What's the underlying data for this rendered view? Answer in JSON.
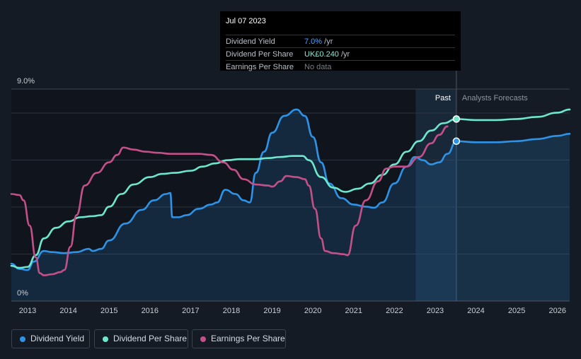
{
  "tooltip": {
    "date": "Jul 07 2023",
    "rows": [
      {
        "label": "Dividend Yield",
        "value": "7.0%",
        "unit": " /yr",
        "color": "#4aa3ff"
      },
      {
        "label": "Dividend Per Share",
        "value": "UK£0.240",
        "unit": " /yr",
        "color": "#7ff0da"
      },
      {
        "label": "Earnings Per Share",
        "value": "No data",
        "unit": "",
        "color": "#7a7f87"
      }
    ]
  },
  "legend": [
    {
      "label": "Dividend Yield",
      "color": "#2e93e6"
    },
    {
      "label": "Dividend Per Share",
      "color": "#6de8cf"
    },
    {
      "label": "Earnings Per Share",
      "color": "#c4508a"
    }
  ],
  "chart_data": {
    "type": "line",
    "title": "",
    "xlabel": "",
    "ylabel": "",
    "y_tick_labels": [
      "9.0%",
      "0%"
    ],
    "ylim": [
      0,
      9
    ],
    "xlim": [
      2012.6,
      2026.3
    ],
    "x_ticks": [
      2013,
      2014,
      2015,
      2016,
      2017,
      2018,
      2019,
      2020,
      2021,
      2022,
      2023,
      2024,
      2025,
      2026
    ],
    "past_label": "Past",
    "forecast_label": "Analysts Forecasts",
    "forecast_start": 2023.52,
    "highlight_start": 2022.52,
    "series": [
      {
        "name": "Dividend Yield",
        "color": "#2e93e6",
        "area": true,
        "points": [
          [
            2012.6,
            1.2
          ],
          [
            2012.8,
            0.95
          ],
          [
            2013.0,
            0.9
          ],
          [
            2013.15,
            1.3
          ],
          [
            2013.4,
            1.8
          ],
          [
            2013.6,
            1.75
          ],
          [
            2013.9,
            1.7
          ],
          [
            2014.2,
            1.75
          ],
          [
            2014.5,
            1.9
          ],
          [
            2014.6,
            1.8
          ],
          [
            2014.8,
            1.9
          ],
          [
            2015.0,
            2.3
          ],
          [
            2015.4,
            3.1
          ],
          [
            2015.8,
            3.75
          ],
          [
            2016.1,
            4.2
          ],
          [
            2016.4,
            4.5
          ],
          [
            2016.5,
            4.55
          ],
          [
            2016.55,
            3.4
          ],
          [
            2016.7,
            3.4
          ],
          [
            2016.9,
            3.5
          ],
          [
            2017.2,
            3.8
          ],
          [
            2017.5,
            4.0
          ],
          [
            2017.65,
            4.1
          ],
          [
            2017.85,
            4.7
          ],
          [
            2018.1,
            4.5
          ],
          [
            2018.3,
            4.2
          ],
          [
            2018.45,
            4.1
          ],
          [
            2018.6,
            5.5
          ],
          [
            2018.8,
            6.5
          ],
          [
            2019.0,
            7.4
          ],
          [
            2019.3,
            8.2
          ],
          [
            2019.6,
            8.5
          ],
          [
            2019.8,
            8.2
          ],
          [
            2020.0,
            7.2
          ],
          [
            2020.2,
            6.0
          ],
          [
            2020.4,
            5.0
          ],
          [
            2020.7,
            4.3
          ],
          [
            2021.0,
            4.0
          ],
          [
            2021.3,
            3.9
          ],
          [
            2021.5,
            3.85
          ],
          [
            2021.7,
            4.1
          ],
          [
            2022.0,
            5.0
          ],
          [
            2022.3,
            5.8
          ],
          [
            2022.5,
            6.25
          ],
          [
            2022.7,
            6.1
          ],
          [
            2022.9,
            5.9
          ],
          [
            2023.1,
            6.0
          ],
          [
            2023.3,
            6.4
          ],
          [
            2023.52,
            7.0
          ]
        ]
      },
      {
        "name": "Dividend Yield Forecast",
        "color": "#2e93e6",
        "area": true,
        "forecast": true,
        "points": [
          [
            2023.52,
            7.0
          ],
          [
            2024.0,
            6.95
          ],
          [
            2024.5,
            6.95
          ],
          [
            2025.0,
            7.0
          ],
          [
            2025.5,
            7.1
          ],
          [
            2026.0,
            7.25
          ],
          [
            2026.3,
            7.35
          ]
        ]
      },
      {
        "name": "Dividend Per Share",
        "color": "#6de8cf",
        "area": false,
        "points": [
          [
            2012.6,
            1.1
          ],
          [
            2012.8,
            1.0
          ],
          [
            2013.0,
            1.05
          ],
          [
            2013.2,
            1.6
          ],
          [
            2013.4,
            2.4
          ],
          [
            2013.7,
            2.9
          ],
          [
            2014.0,
            3.2
          ],
          [
            2014.3,
            3.4
          ],
          [
            2014.6,
            3.45
          ],
          [
            2014.8,
            3.5
          ],
          [
            2015.0,
            3.9
          ],
          [
            2015.3,
            4.5
          ],
          [
            2015.6,
            4.95
          ],
          [
            2016.0,
            5.3
          ],
          [
            2016.3,
            5.45
          ],
          [
            2016.6,
            5.5
          ],
          [
            2017.0,
            5.6
          ],
          [
            2017.3,
            5.8
          ],
          [
            2017.6,
            5.95
          ],
          [
            2017.9,
            6.1
          ],
          [
            2018.2,
            6.15
          ],
          [
            2018.6,
            6.15
          ],
          [
            2018.9,
            6.2
          ],
          [
            2019.2,
            6.25
          ],
          [
            2019.5,
            6.3
          ],
          [
            2019.75,
            6.3
          ],
          [
            2019.9,
            6.1
          ],
          [
            2020.2,
            5.3
          ],
          [
            2020.5,
            4.8
          ],
          [
            2020.8,
            4.6
          ],
          [
            2021.1,
            4.75
          ],
          [
            2021.4,
            5.0
          ],
          [
            2021.7,
            5.4
          ],
          [
            2022.0,
            5.9
          ],
          [
            2022.3,
            6.5
          ],
          [
            2022.6,
            7.0
          ],
          [
            2022.9,
            7.5
          ],
          [
            2023.2,
            7.85
          ],
          [
            2023.52,
            8.05
          ]
        ]
      },
      {
        "name": "Dividend Per Share Forecast",
        "color": "#6de8cf",
        "area": false,
        "forecast": true,
        "points": [
          [
            2023.52,
            8.05
          ],
          [
            2024.0,
            8.0
          ],
          [
            2024.5,
            8.0
          ],
          [
            2025.0,
            8.05
          ],
          [
            2025.5,
            8.15
          ],
          [
            2026.0,
            8.35
          ],
          [
            2026.3,
            8.5
          ]
        ]
      },
      {
        "name": "Earnings Per Share",
        "color": "#c4508a",
        "area": false,
        "points": [
          [
            2012.6,
            4.5
          ],
          [
            2012.8,
            4.45
          ],
          [
            2012.9,
            4.2
          ],
          [
            2013.05,
            3.0
          ],
          [
            2013.2,
            1.5
          ],
          [
            2013.3,
            0.75
          ],
          [
            2013.4,
            0.65
          ],
          [
            2013.6,
            0.7
          ],
          [
            2013.8,
            0.8
          ],
          [
            2013.9,
            0.9
          ],
          [
            2014.05,
            2.0
          ],
          [
            2014.2,
            3.5
          ],
          [
            2014.4,
            4.9
          ],
          [
            2014.7,
            5.5
          ],
          [
            2015.0,
            6.0
          ],
          [
            2015.2,
            6.35
          ],
          [
            2015.35,
            6.7
          ],
          [
            2015.6,
            6.6
          ],
          [
            2015.9,
            6.5
          ],
          [
            2016.2,
            6.45
          ],
          [
            2016.5,
            6.4
          ],
          [
            2016.9,
            6.4
          ],
          [
            2017.2,
            6.4
          ],
          [
            2017.5,
            6.35
          ],
          [
            2017.8,
            6.0
          ],
          [
            2018.05,
            5.65
          ],
          [
            2018.3,
            5.2
          ],
          [
            2018.6,
            4.95
          ],
          [
            2018.9,
            4.9
          ],
          [
            2019.0,
            4.85
          ],
          [
            2019.2,
            5.1
          ],
          [
            2019.35,
            5.35
          ],
          [
            2019.6,
            5.3
          ],
          [
            2019.8,
            5.2
          ],
          [
            2019.9,
            4.9
          ],
          [
            2020.05,
            3.8
          ],
          [
            2020.2,
            2.4
          ],
          [
            2020.3,
            1.8
          ],
          [
            2020.5,
            1.7
          ],
          [
            2020.75,
            1.65
          ],
          [
            2020.85,
            1.6
          ],
          [
            2021.05,
            3.0
          ],
          [
            2021.3,
            4.2
          ],
          [
            2021.6,
            5.1
          ],
          [
            2021.8,
            5.7
          ],
          [
            2022.0,
            5.8
          ],
          [
            2022.3,
            5.8
          ],
          [
            2022.6,
            6.25
          ],
          [
            2022.9,
            6.9
          ],
          [
            2023.1,
            7.3
          ],
          [
            2023.3,
            7.7
          ]
        ]
      }
    ],
    "markers": [
      {
        "series": "Dividend Yield",
        "x": 2023.52,
        "y": 7.0,
        "color": "#2e93e6"
      },
      {
        "series": "Dividend Per Share",
        "x": 2023.52,
        "y": 8.05,
        "color": "#6de8cf"
      }
    ]
  }
}
